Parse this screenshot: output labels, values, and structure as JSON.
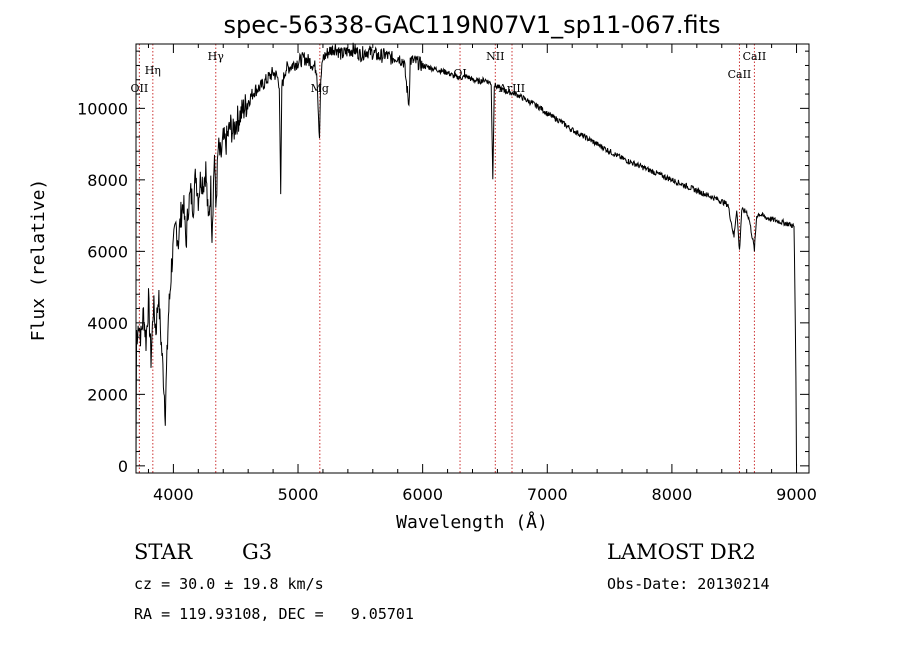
{
  "title": "spec-56338-GAC119N07V1_sp11-067.fits",
  "chart_data": {
    "type": "line",
    "xlabel": "Wavelength (Å)",
    "ylabel": "Flux (relative)",
    "xlim": [
      3700,
      9100
    ],
    "ylim": [
      -200,
      11800
    ],
    "x_ticks": [
      4000,
      5000,
      6000,
      7000,
      8000,
      9000
    ],
    "y_ticks": [
      0,
      2000,
      4000,
      6000,
      8000,
      10000
    ],
    "grid": false,
    "series": [
      {
        "x": [
          3700,
          3702,
          3705,
          3710,
          3720,
          3740,
          3760,
          3780,
          3800,
          3820,
          3840,
          3860,
          3880,
          3900,
          3920,
          3935,
          3945,
          3960,
          3970,
          3985,
          4000,
          4020,
          4040,
          4060,
          4080,
          4101,
          4120,
          4140,
          4160,
          4180,
          4200,
          4220,
          4240,
          4260,
          4280,
          4300,
          4310,
          4330,
          4340,
          4360,
          4380,
          4400,
          4420,
          4440,
          4460,
          4480,
          4500,
          4550,
          4600,
          4650,
          4700,
          4750,
          4800,
          4830,
          4850,
          4861,
          4870,
          4900,
          4950,
          5000,
          5050,
          5100,
          5150,
          5172,
          5183,
          5200,
          5250,
          5300,
          5350,
          5400,
          5450,
          5500,
          5550,
          5600,
          5650,
          5700,
          5750,
          5800,
          5850,
          5890,
          5900,
          5950,
          6000,
          6050,
          6100,
          6150,
          6200,
          6250,
          6300,
          6350,
          6400,
          6450,
          6500,
          6550,
          6563,
          6575,
          6600,
          6650,
          6700,
          6750,
          6800,
          6850,
          6900,
          6950,
          7000,
          7100,
          7200,
          7300,
          7400,
          7500,
          7600,
          7700,
          7800,
          7900,
          8000,
          8100,
          8200,
          8300,
          8400,
          8450,
          8498,
          8520,
          8542,
          8560,
          8600,
          8620,
          8662,
          8680,
          8700,
          8750,
          8800,
          8850,
          8900,
          8950,
          8980,
          8990,
          8995,
          9000
        ],
        "y": [
          0,
          1500,
          3800,
          3400,
          4100,
          3600,
          4300,
          3500,
          4600,
          3000,
          4500,
          3800,
          4800,
          3600,
          2500,
          1500,
          2600,
          4200,
          4700,
          5600,
          6100,
          6700,
          6300,
          7000,
          7400,
          6200,
          7300,
          7600,
          7300,
          8200,
          7500,
          8100,
          7900,
          8300,
          6800,
          7800,
          6500,
          8800,
          7200,
          8900,
          8600,
          9100,
          9000,
          9300,
          9500,
          9300,
          9600,
          9900,
          10200,
          10500,
          10600,
          10800,
          11000,
          10900,
          10700,
          7500,
          10600,
          11100,
          11200,
          11300,
          11400,
          11300,
          11100,
          9200,
          10800,
          11400,
          11600,
          11700,
          11500,
          11600,
          11650,
          11500,
          11600,
          11550,
          11450,
          11500,
          11400,
          11450,
          11300,
          10100,
          11350,
          11300,
          11200,
          11150,
          11100,
          11050,
          11000,
          10900,
          10850,
          10900,
          10800,
          10750,
          10800,
          10700,
          8000,
          10650,
          10600,
          10500,
          10450,
          10400,
          10300,
          10200,
          10100,
          10000,
          9850,
          9650,
          9400,
          9200,
          9000,
          8800,
          8600,
          8450,
          8300,
          8150,
          8000,
          7850,
          7700,
          7550,
          7400,
          7300,
          6400,
          7200,
          6000,
          7150,
          7100,
          6900,
          6050,
          7000,
          7050,
          6950,
          6900,
          6850,
          6800,
          6750,
          6700,
          4000,
          2500,
          0
        ]
      }
    ],
    "line_labels": [
      {
        "label": "OII",
        "wavelength": 3727
      },
      {
        "label": "Hη",
        "wavelength": 3835
      },
      {
        "label": "Hγ",
        "wavelength": 4340
      },
      {
        "label": "Mg",
        "wavelength": 5175
      },
      {
        "label": "OI",
        "wavelength": 6300
      },
      {
        "label": "NII",
        "wavelength": 6583
      },
      {
        "label": "ArIII",
        "wavelength": 6717
      },
      {
        "label": "CaII",
        "wavelength": 8542
      },
      {
        "label": "CaII",
        "wavelength": 8662
      }
    ],
    "marker_color": "#cc3333"
  },
  "info": {
    "class": "STAR",
    "subclass": "G3",
    "survey": "LAMOST DR2",
    "cz": "cz = 30.0 ± 19.8 km/s",
    "obs_date": "Obs-Date: 20130214",
    "radec": "RA = 119.93108, DEC =   9.05701"
  }
}
